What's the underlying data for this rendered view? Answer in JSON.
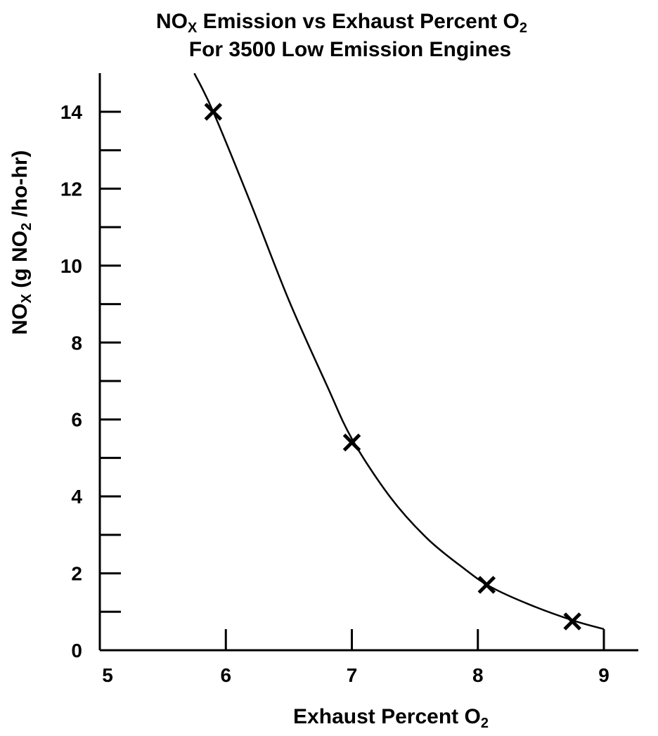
{
  "chart_data": {
    "type": "scatter",
    "title": {
      "line1": {
        "main": "NO",
        "sub": "X",
        "rest": " Emission vs Exhaust Percent O",
        "sub2": "2"
      },
      "line2": "For 3500 Low Emission Engines"
    },
    "xlabel": {
      "main": "Exhaust Percent O",
      "sub": "2"
    },
    "ylabel": {
      "main": "NO",
      "sub": "X",
      "rest": " (g NO",
      "sub2": "2",
      "rest2": " /ho-hr)"
    },
    "xlim": [
      5,
      9.3
    ],
    "ylim": [
      0,
      15
    ],
    "x_ticks": [
      5,
      6,
      7,
      8,
      9
    ],
    "y_ticks": [
      0,
      2,
      4,
      6,
      8,
      10,
      12,
      14
    ],
    "y_minor_ticks": [
      1,
      3,
      5,
      7,
      9,
      11,
      13
    ],
    "series": [
      {
        "marker": "X",
        "points": [
          {
            "x": 5.9,
            "y": 14.0
          },
          {
            "x": 7.0,
            "y": 5.4
          },
          {
            "x": 8.07,
            "y": 1.7
          },
          {
            "x": 8.75,
            "y": 0.75
          }
        ]
      }
    ],
    "fit_curve": {
      "points": [
        {
          "x": 5.75,
          "y": 15.0
        },
        {
          "x": 5.9,
          "y": 14.0
        },
        {
          "x": 6.2,
          "y": 11.6
        },
        {
          "x": 6.5,
          "y": 9.1
        },
        {
          "x": 6.8,
          "y": 6.9
        },
        {
          "x": 7.0,
          "y": 5.5
        },
        {
          "x": 7.3,
          "y": 4.0
        },
        {
          "x": 7.6,
          "y": 2.9
        },
        {
          "x": 7.9,
          "y": 2.1
        },
        {
          "x": 8.1,
          "y": 1.65
        },
        {
          "x": 8.4,
          "y": 1.2
        },
        {
          "x": 8.75,
          "y": 0.78
        },
        {
          "x": 9.0,
          "y": 0.55
        }
      ]
    },
    "grid": false,
    "colors": {
      "line": "#000000",
      "background": "#ffffff"
    }
  }
}
